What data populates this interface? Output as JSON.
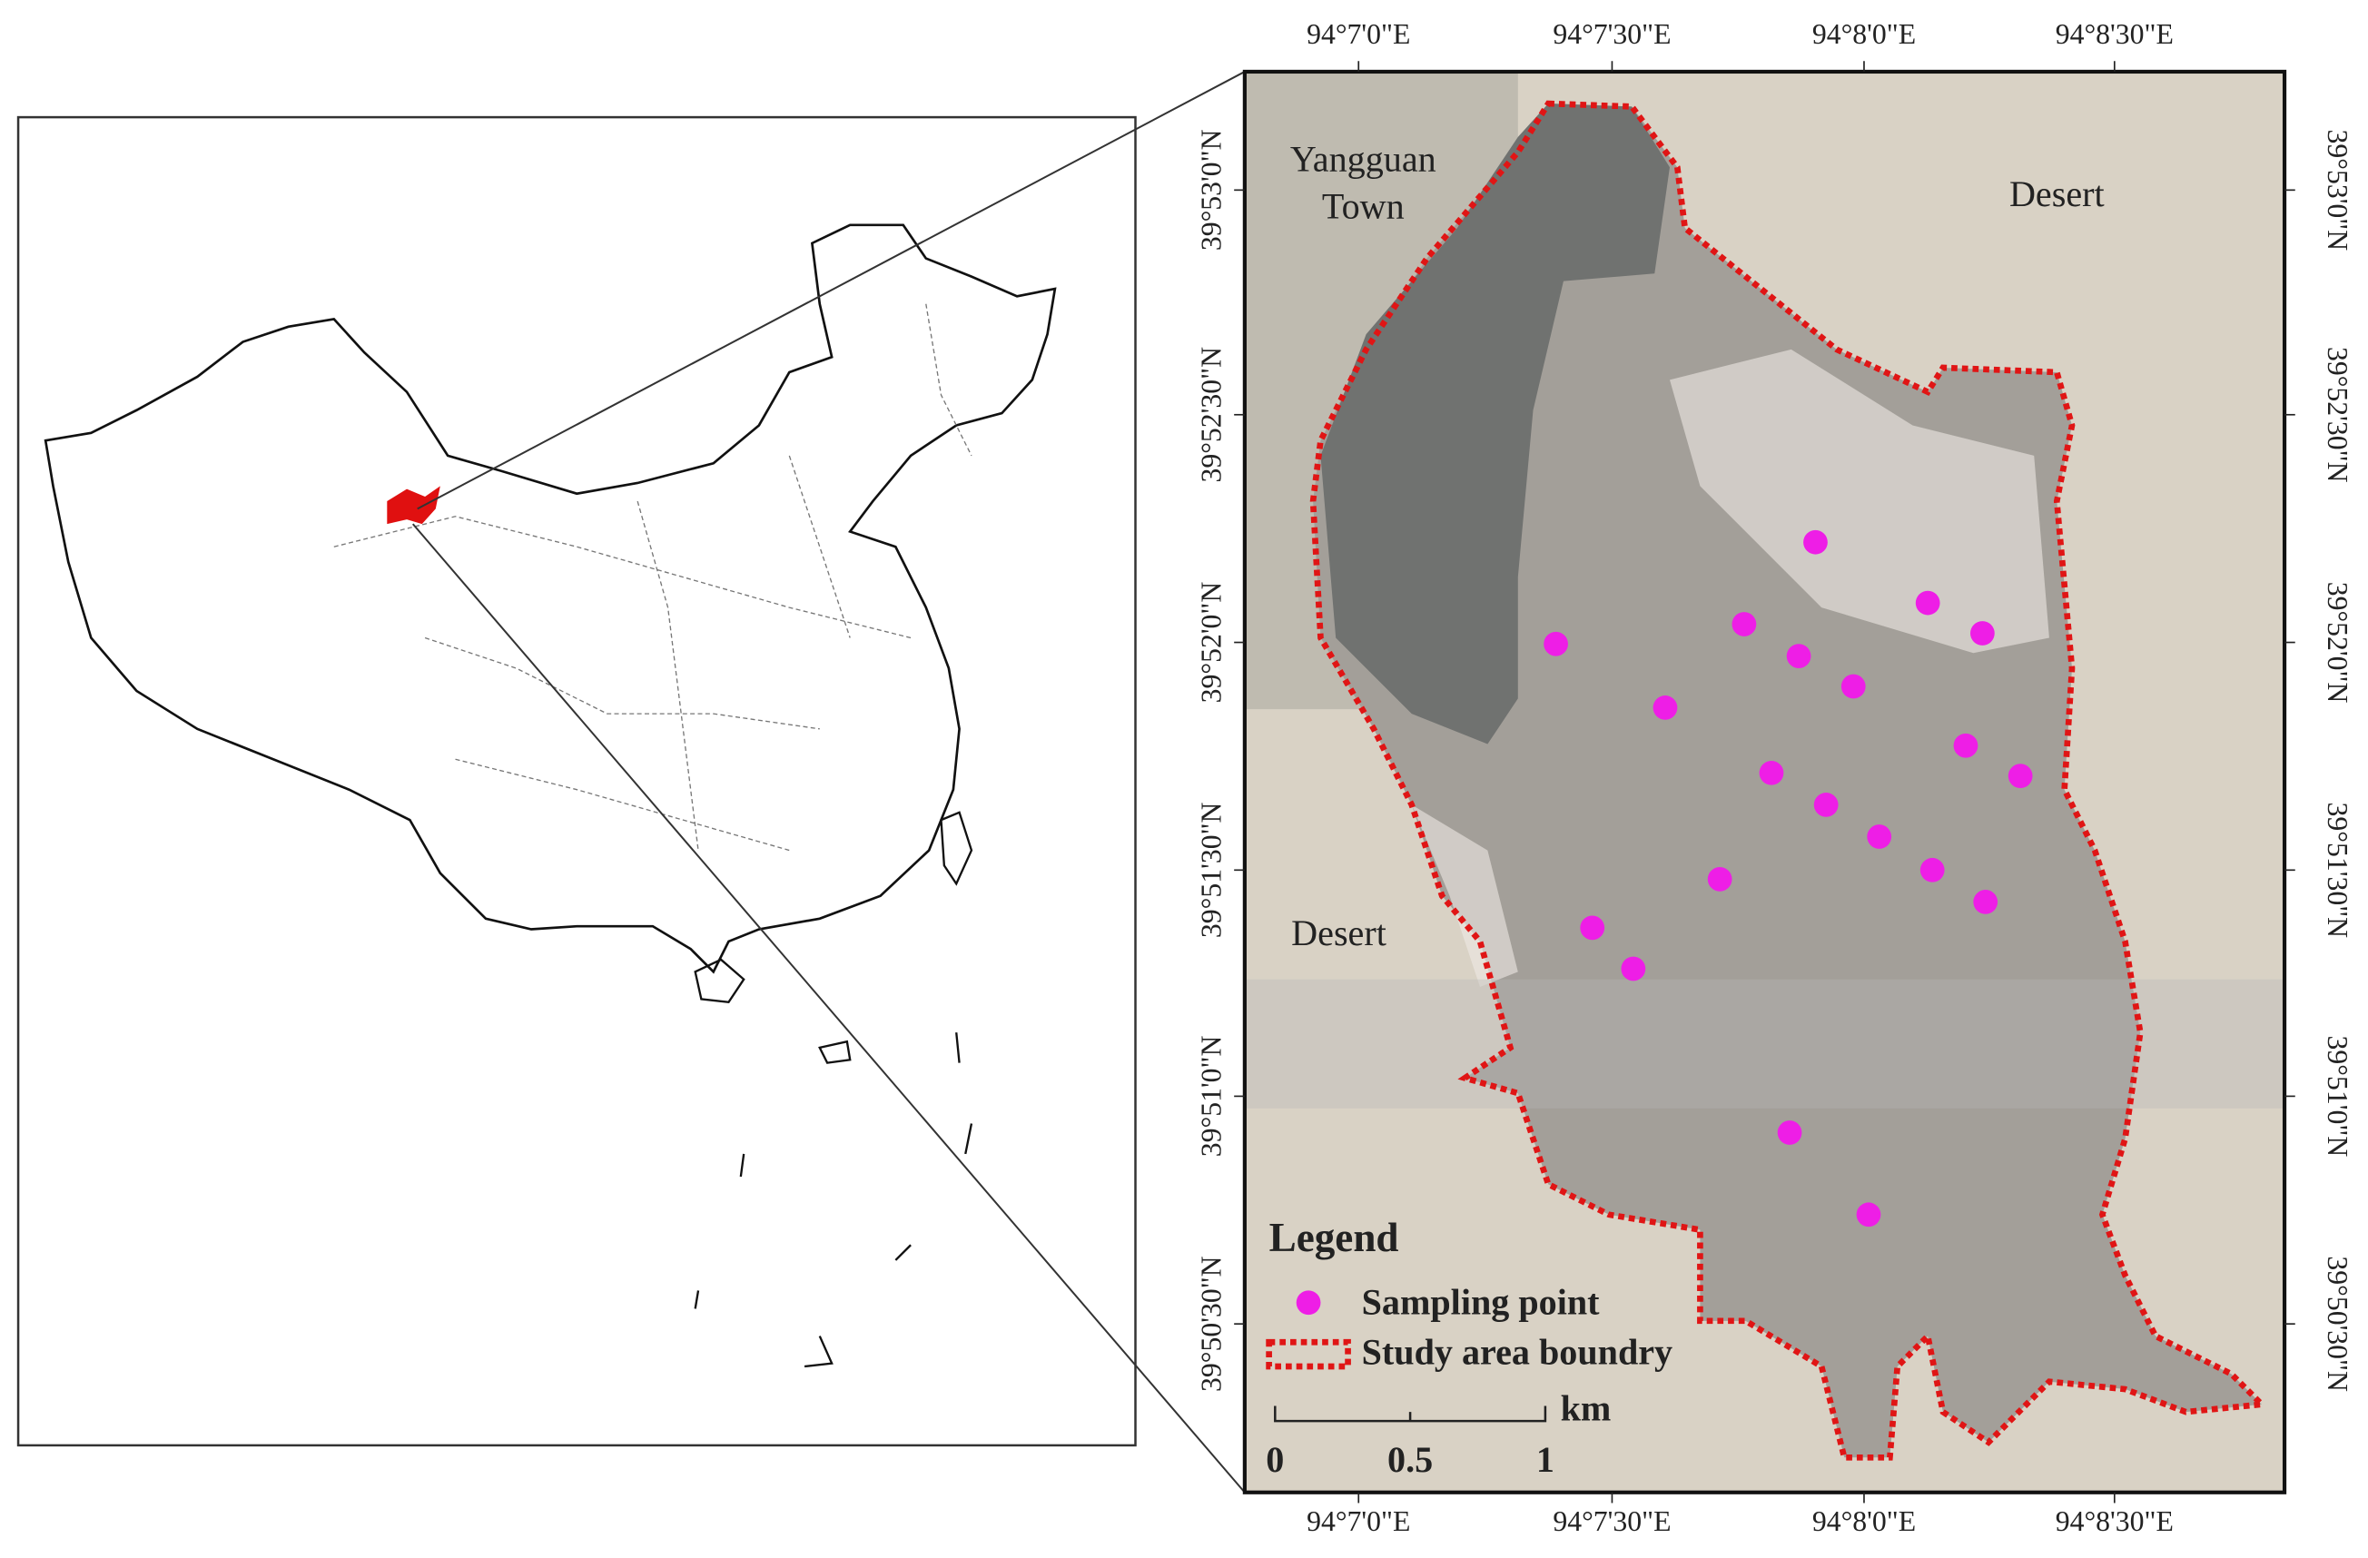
{
  "map": {
    "top_axis": [
      "94°7'0\"E",
      "94°7'30\"E",
      "94°8'0\"E",
      "94°8'30\"E"
    ],
    "bottom_axis": [
      "94°7'0\"E",
      "94°7'30\"E",
      "94°8'0\"E",
      "94°8'30\"E"
    ],
    "left_axis": [
      "39°53'0\"N",
      "39°52'30\"N",
      "39°52'0\"N",
      "39°51'30\"N",
      "39°51'0\"N",
      "39°50'30\"N"
    ],
    "right_axis": [
      "39°53'0\"N",
      "39°52'30\"N",
      "39°52'0\"N",
      "39°51'30\"N",
      "39°51'0\"N",
      "39°50'30\"N"
    ],
    "places": {
      "town": [
        "Yangguan",
        "Town"
      ],
      "desert_east": "Desert",
      "desert_west": "Desert"
    },
    "legend": {
      "title": "Legend",
      "items": [
        "Sampling point",
        "Study area boundry"
      ]
    },
    "scale_bar": {
      "labels": [
        "0",
        "0.5",
        "1"
      ],
      "unit": "km"
    }
  }
}
